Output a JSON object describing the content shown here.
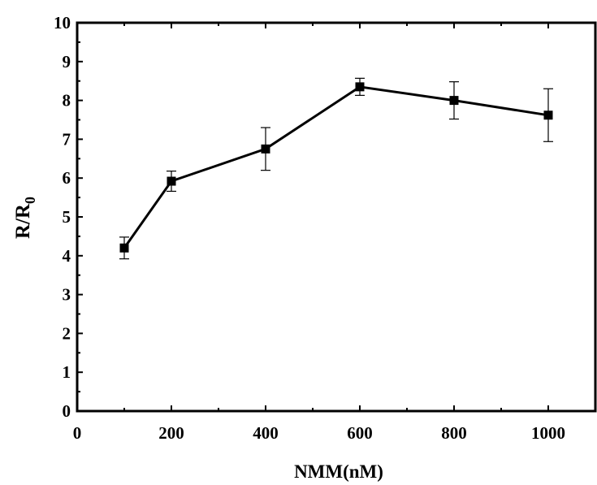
{
  "chart_data": {
    "type": "line",
    "xlabel": "NMM(nM)",
    "ylabel": "R/R",
    "ylabel_subscript": "0",
    "xlim": [
      0,
      1100
    ],
    "ylim": [
      0,
      10
    ],
    "xticks": [
      0,
      200,
      400,
      600,
      800,
      1000
    ],
    "yticks": [
      0,
      1,
      2,
      3,
      4,
      5,
      6,
      7,
      8,
      9,
      10
    ],
    "grid": false,
    "series": [
      {
        "x": [
          100,
          200,
          400,
          600,
          800,
          1000
        ],
        "y": [
          4.2,
          5.92,
          6.75,
          8.35,
          8.0,
          7.62
        ],
        "yerr": [
          0.28,
          0.26,
          0.55,
          0.22,
          0.48,
          0.68
        ],
        "marker": "square",
        "color": "#000000"
      }
    ]
  }
}
